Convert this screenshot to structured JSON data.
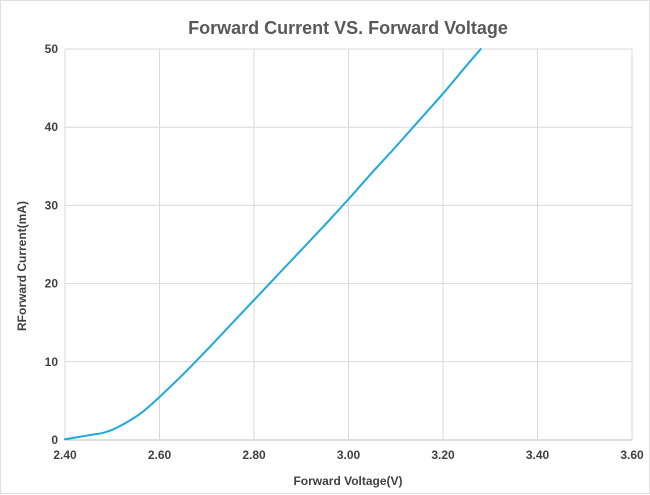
{
  "chart_data": {
    "type": "line",
    "title": "Forward Current VS. Forward Voltage",
    "xlabel": "Forward Voltage(V)",
    "ylabel": "RForward Current(mA)",
    "xlim": [
      2.4,
      3.6
    ],
    "ylim": [
      0,
      50
    ],
    "x_ticks": [
      "2.40",
      "2.60",
      "2.80",
      "3.00",
      "3.20",
      "3.40",
      "3.60"
    ],
    "y_ticks": [
      "0",
      "10",
      "20",
      "30",
      "40",
      "50"
    ],
    "grid": true,
    "legend": "none",
    "series": [
      {
        "color": "#1fa8dc",
        "x": [
          2.4,
          2.43,
          2.46,
          2.48,
          2.5,
          2.52,
          2.54,
          2.56,
          2.58,
          2.6,
          2.65,
          2.7,
          2.75,
          2.8,
          2.85,
          2.9,
          2.95,
          3.0,
          3.05,
          3.1,
          3.15,
          3.2,
          3.25,
          3.28
        ],
        "y": [
          0.1,
          0.4,
          0.7,
          0.9,
          1.3,
          1.9,
          2.6,
          3.4,
          4.4,
          5.5,
          8.4,
          11.5,
          14.7,
          17.9,
          21.1,
          24.3,
          27.5,
          30.8,
          34.2,
          37.5,
          40.9,
          44.3,
          47.9,
          50.0
        ]
      }
    ]
  }
}
